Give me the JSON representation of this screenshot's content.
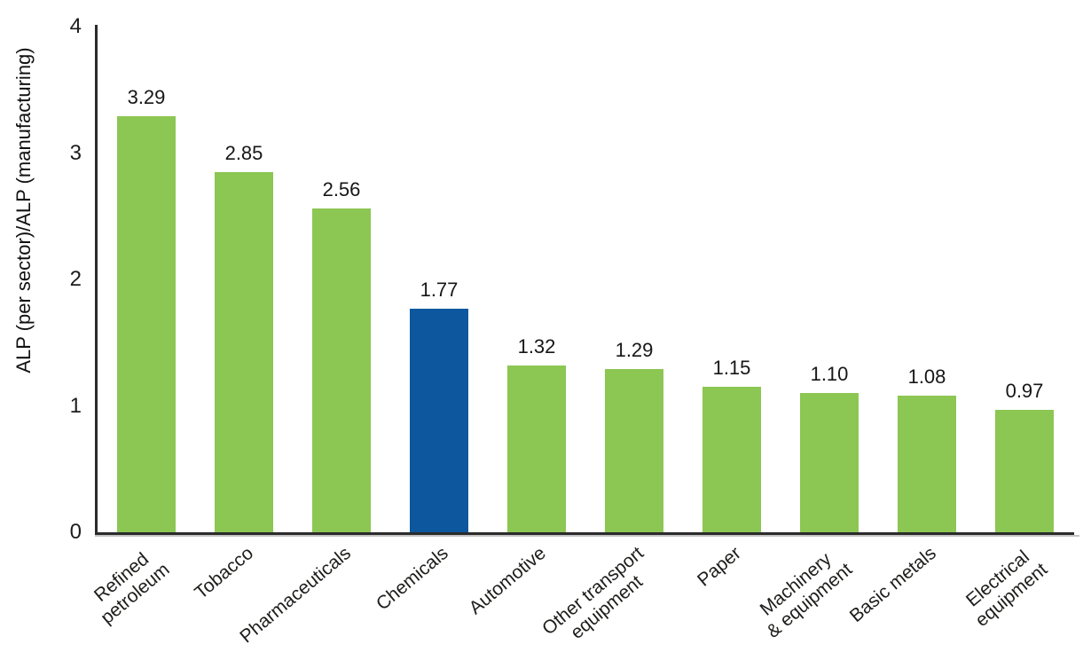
{
  "chart_data": {
    "type": "bar",
    "categories": [
      "Refined\npetroleum",
      "Tobacco",
      "Pharmaceuticals",
      "Chemicals",
      "Automotive",
      "Other transport\nequipment",
      "Paper",
      "Machinery\n& equipment",
      "Basic metals",
      "Electrical\nequipment"
    ],
    "values": [
      3.29,
      2.85,
      2.56,
      1.77,
      1.32,
      1.29,
      1.15,
      1.1,
      1.08,
      0.97
    ],
    "value_labels": [
      "3.29",
      "2.85",
      "2.56",
      "1.77",
      "1.32",
      "1.29",
      "1.15",
      "1.10",
      "1.08",
      "0.97"
    ],
    "title": "",
    "xlabel": "",
    "ylabel": "ALP (per sector)/ALP (manufacturing)",
    "ylim": [
      0,
      4
    ],
    "yticks": [
      "0",
      "1",
      "2",
      "3",
      "4"
    ],
    "grid": false,
    "legend": null,
    "colors": {
      "bar_default": "#8cc653",
      "bar_highlight": "#0d579e",
      "axis": "#2b2b2b",
      "text": "#1d1d1b"
    },
    "highlight_index": 3
  }
}
